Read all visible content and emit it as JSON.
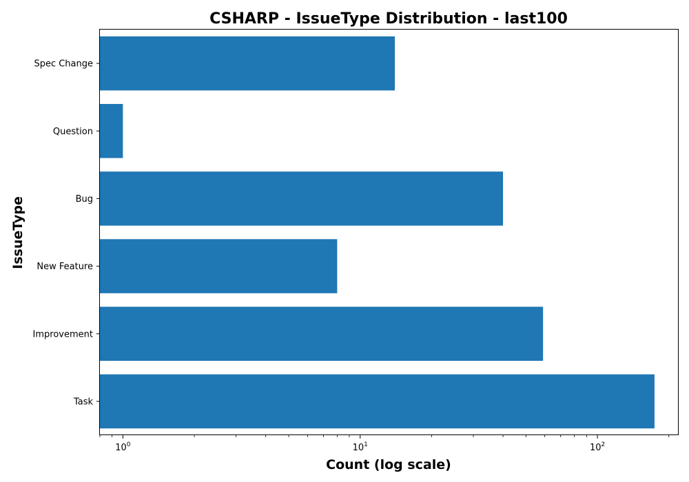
{
  "chart_data": {
    "type": "bar",
    "orientation": "horizontal",
    "title": "CSHARP - IssueType Distribution - last100",
    "xlabel": "Count (log scale)",
    "ylabel": "IssueType",
    "x_scale": "log",
    "xlim": [
      0.8,
      220
    ],
    "x_ticks": [
      {
        "base": "10",
        "exp": "0",
        "value": 1
      },
      {
        "base": "10",
        "exp": "1",
        "value": 10
      },
      {
        "base": "10",
        "exp": "2",
        "value": 100
      }
    ],
    "categories": [
      "Spec Change",
      "Question",
      "Bug",
      "New Feature",
      "Improvement",
      "Task"
    ],
    "values": [
      14,
      1,
      40,
      8,
      59,
      174
    ],
    "bar_color": "#1f77b4",
    "grid": false
  }
}
